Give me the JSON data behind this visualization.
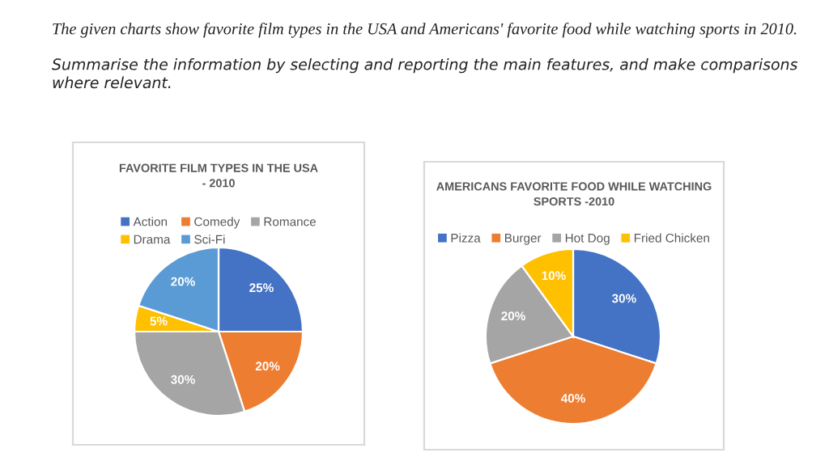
{
  "chart_data": [
    {
      "type": "pie",
      "title": "FAVORITE FILM TYPES IN THE USA - 2010",
      "categories": [
        "Action",
        "Comedy",
        "Romance",
        "Drama",
        "Sci-Fi"
      ],
      "values": [
        25,
        20,
        30,
        5,
        20
      ],
      "value_labels": [
        "25%",
        "20%",
        "30%",
        "5%",
        "20%"
      ],
      "colors": [
        "#4472c4",
        "#ed7d31",
        "#a5a5a5",
        "#ffc000",
        "#5b9bd5"
      ],
      "legend": "top",
      "annotations": [
        "The given charts show favorite film types in the USA and Americans' favorite food while watching sports in 2010.",
        "Summarise the information by selecting and reporting the main features, and make comparisons where relevant."
      ]
    },
    {
      "type": "pie",
      "title": "AMERICANS FAVORITE FOOD WHILE WATCHING SPORTS -2010",
      "categories": [
        "Pizza",
        "Burger",
        "Hot Dog",
        "Fried Chicken"
      ],
      "values": [
        30,
        40,
        20,
        10
      ],
      "value_labels": [
        "30%",
        "40%",
        "20%",
        "10%"
      ],
      "colors": [
        "#4472c4",
        "#ed7d31",
        "#a5a5a5",
        "#ffc000"
      ],
      "legend": "top"
    }
  ]
}
